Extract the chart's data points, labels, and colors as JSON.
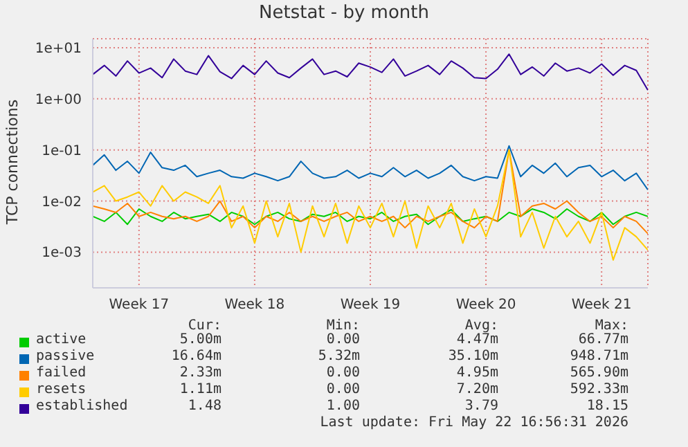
{
  "chart_data": {
    "type": "line",
    "title": "Netstat - by month",
    "ylabel": "TCP connections",
    "log": "y",
    "grid": true,
    "legend": "bottom",
    "marker": "none",
    "categories": [
      null,
      null,
      null,
      null,
      "Week 17",
      null,
      null,
      null,
      null,
      null,
      null,
      null,
      null,
      null,
      "Week 18",
      null,
      null,
      null,
      null,
      null,
      null,
      null,
      null,
      null,
      "Week 19",
      null,
      null,
      null,
      null,
      null,
      null,
      null,
      null,
      null,
      "Week 20",
      null,
      null,
      null,
      null,
      null,
      null,
      null,
      null,
      null,
      "Week 21",
      null,
      null,
      null,
      null
    ],
    "ylim": [
      0.0002,
      15
    ],
    "yticks": [
      {
        "value": 0.001,
        "label": "1e-03"
      },
      {
        "value": 0.01,
        "label": "1e-02"
      },
      {
        "value": 0.1,
        "label": "1e-01"
      },
      {
        "value": 1,
        "label": "1e+00"
      },
      {
        "value": 10,
        "label": "1e+01"
      }
    ],
    "series": [
      {
        "name": "active",
        "color": "#00cc00",
        "values": [
          0.005,
          0.004,
          0.006,
          0.0035,
          0.007,
          0.005,
          0.004,
          0.006,
          0.0045,
          0.005,
          0.0055,
          0.004,
          0.006,
          0.005,
          0.0035,
          0.005,
          0.006,
          0.0045,
          0.004,
          0.0055,
          0.005,
          0.006,
          0.004,
          0.005,
          0.0045,
          0.006,
          0.004,
          0.005,
          0.0055,
          0.0035,
          0.005,
          0.0068,
          0.004,
          0.0045,
          0.005,
          0.004,
          0.006,
          0.005,
          0.007,
          0.006,
          0.0045,
          0.007,
          0.005,
          0.004,
          0.006,
          0.0035,
          0.005,
          0.006,
          0.005
        ]
      },
      {
        "name": "passive",
        "color": "#0066b3",
        "values": [
          0.05,
          0.08,
          0.04,
          0.06,
          0.035,
          0.09,
          0.045,
          0.04,
          0.05,
          0.03,
          0.035,
          0.04,
          0.03,
          0.028,
          0.035,
          0.03,
          0.025,
          0.03,
          0.06,
          0.035,
          0.028,
          0.03,
          0.04,
          0.028,
          0.035,
          0.03,
          0.045,
          0.03,
          0.04,
          0.028,
          0.035,
          0.05,
          0.03,
          0.025,
          0.03,
          0.028,
          0.12,
          0.03,
          0.05,
          0.035,
          0.055,
          0.03,
          0.045,
          0.05,
          0.03,
          0.04,
          0.025,
          0.035,
          0.0166
        ]
      },
      {
        "name": "failed",
        "color": "#ff8000",
        "values": [
          0.008,
          0.007,
          0.006,
          0.009,
          0.005,
          0.006,
          0.005,
          0.0045,
          0.005,
          0.004,
          0.005,
          0.01,
          0.004,
          0.005,
          0.003,
          0.005,
          0.004,
          0.006,
          0.004,
          0.005,
          0.004,
          0.005,
          0.006,
          0.004,
          0.005,
          0.004,
          0.005,
          0.003,
          0.005,
          0.004,
          0.005,
          0.006,
          0.004,
          0.003,
          0.005,
          0.004,
          0.1,
          0.005,
          0.008,
          0.009,
          0.007,
          0.01,
          0.006,
          0.004,
          0.005,
          0.003,
          0.005,
          0.004,
          0.0023
        ]
      },
      {
        "name": "resets",
        "color": "#ffcc00",
        "values": [
          0.015,
          0.02,
          0.01,
          0.012,
          0.015,
          0.008,
          0.02,
          0.01,
          0.015,
          0.012,
          0.009,
          0.02,
          0.003,
          0.008,
          0.0015,
          0.01,
          0.002,
          0.009,
          0.001,
          0.008,
          0.002,
          0.009,
          0.0015,
          0.008,
          0.003,
          0.009,
          0.002,
          0.01,
          0.0012,
          0.008,
          0.003,
          0.009,
          0.0015,
          0.007,
          0.002,
          0.008,
          0.1,
          0.002,
          0.006,
          0.0012,
          0.005,
          0.002,
          0.004,
          0.0015,
          0.006,
          0.0007,
          0.003,
          0.002,
          0.0011
        ]
      },
      {
        "name": "established",
        "color": "#330099",
        "values": [
          3,
          4.5,
          2.8,
          5.5,
          3.2,
          4,
          2.6,
          6,
          3.5,
          3,
          7,
          3.4,
          2.5,
          4.5,
          3,
          5.5,
          3.2,
          2.6,
          4,
          6,
          3,
          3.5,
          2.7,
          5,
          4.2,
          3.3,
          6,
          2.8,
          3.5,
          4.5,
          3,
          5.5,
          4,
          2.6,
          2.5,
          3.8,
          7.5,
          3,
          4.2,
          2.8,
          5,
          3.5,
          4,
          3.2,
          4.8,
          2.9,
          4.5,
          3.6,
          1.48
        ]
      }
    ],
    "annotations": [
      "Cur:",
      "Min:",
      "Avg:",
      "Max:",
      "5.00m",
      "0.00",
      "4.47m",
      "66.77m",
      "16.64m",
      "5.32m",
      "35.10m",
      "948.71m",
      "2.33m",
      "0.00",
      "4.95m",
      "565.90m",
      "1.11m",
      "0.00",
      "7.20m",
      "592.33m",
      "1.48",
      "1.00",
      "3.79",
      "18.15",
      "Last update: Fri May 22 16:56:31 2026"
    ]
  }
}
